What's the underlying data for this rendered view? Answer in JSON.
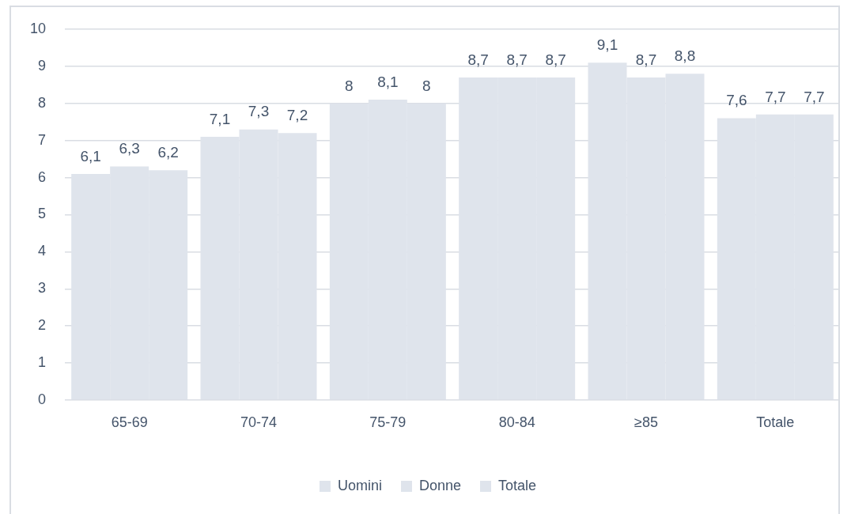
{
  "chart_data": {
    "type": "bar",
    "categories": [
      "65-69",
      "70-74",
      "75-79",
      "80-84",
      "≥85",
      "Totale"
    ],
    "ylim": [
      0,
      10
    ],
    "yticks": [
      0,
      1,
      2,
      3,
      4,
      5,
      6,
      7,
      8,
      9,
      10
    ],
    "grid": "y",
    "legend": "bottom",
    "series": [
      {
        "name": "Uomini",
        "color": "#dfe4ec",
        "values": [
          6.1,
          7.1,
          8,
          8.7,
          9.1,
          7.6
        ],
        "value_labels": [
          "6,1",
          "7,1",
          "8",
          "8,7",
          "9,1",
          "7,6"
        ]
      },
      {
        "name": "Donne",
        "color": "#dfe4ec",
        "values": [
          6.3,
          7.3,
          8.1,
          8.7,
          8.7,
          7.7
        ],
        "value_labels": [
          "6,3",
          "7,3",
          "8,1",
          "8,7",
          "8,7",
          "7,7"
        ]
      },
      {
        "name": "Totale",
        "color": "#dfe4ec",
        "values": [
          6.2,
          7.2,
          8,
          8.7,
          8.8,
          7.7
        ],
        "value_labels": [
          "6,2",
          "7,2",
          "8",
          "8,7",
          "8,8",
          "7,7"
        ]
      }
    ]
  }
}
